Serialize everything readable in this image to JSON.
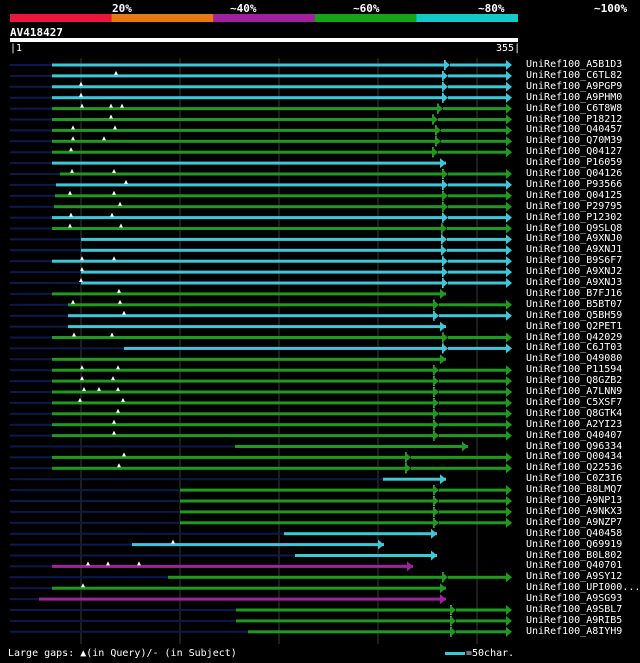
{
  "legend_bar": {
    "labels": [
      "20%",
      "~40%",
      "~60%",
      "~80%",
      "~100%"
    ],
    "colors": [
      "#e8173b",
      "#e87817",
      "#a020a0",
      "#17a317",
      "#17c8c8"
    ]
  },
  "query": {
    "title": "AV418427",
    "start": "1",
    "end": "355"
  },
  "hits": [
    {
      "name": "UniRef100_A5B1D3",
      "color": "cyan"
    },
    {
      "name": "UniRef100_C6TL82",
      "color": "cyan"
    },
    {
      "name": "UniRef100_A9PGP9",
      "color": "cyan"
    },
    {
      "name": "UniRef100_A9PHM0",
      "color": "cyan"
    },
    {
      "name": "UniRef100_C6T8W8",
      "color": "green"
    },
    {
      "name": "UniRef100_P18212",
      "color": "green"
    },
    {
      "name": "UniRef100_Q40457",
      "color": "green"
    },
    {
      "name": "UniRef100_Q70M39",
      "color": "green"
    },
    {
      "name": "UniRef100_Q04127",
      "color": "green"
    },
    {
      "name": "UniRef100_P16059",
      "color": "cyan"
    },
    {
      "name": "UniRef100_Q04126",
      "color": "green"
    },
    {
      "name": "UniRef100_P93566",
      "color": "cyan"
    },
    {
      "name": "UniRef100_Q04125",
      "color": "green"
    },
    {
      "name": "UniRef100_P29795",
      "color": "green"
    },
    {
      "name": "UniRef100_P12302",
      "color": "cyan"
    },
    {
      "name": "UniRef100_Q9SLQ8",
      "color": "green"
    },
    {
      "name": "UniRef100_A9XNJ0",
      "color": "cyan"
    },
    {
      "name": "UniRef100_A9XNJ1",
      "color": "cyan"
    },
    {
      "name": "UniRef100_B9S6F7",
      "color": "cyan"
    },
    {
      "name": "UniRef100_A9XNJ2",
      "color": "cyan"
    },
    {
      "name": "UniRef100_A9XNJ3",
      "color": "cyan"
    },
    {
      "name": "UniRef100_B7FJ16",
      "color": "green"
    },
    {
      "name": "UniRef100_B5BT07",
      "color": "green"
    },
    {
      "name": "UniRef100_Q5BH59",
      "color": "cyan"
    },
    {
      "name": "UniRef100_Q2PET1",
      "color": "cyan"
    },
    {
      "name": "UniRef100_Q42029",
      "color": "green"
    },
    {
      "name": "UniRef100_C6JT03",
      "color": "cyan"
    },
    {
      "name": "UniRef100_Q49080",
      "color": "green"
    },
    {
      "name": "UniRef100_P11594",
      "color": "green"
    },
    {
      "name": "UniRef100_Q8GZB2",
      "color": "green"
    },
    {
      "name": "UniRef100_A7LNN9",
      "color": "green"
    },
    {
      "name": "UniRef100_C5XSF7",
      "color": "green"
    },
    {
      "name": "UniRef100_Q8GTK4",
      "color": "green"
    },
    {
      "name": "UniRef100_A2YI23",
      "color": "green"
    },
    {
      "name": "UniRef100_Q40407",
      "color": "green"
    },
    {
      "name": "UniRef100_Q96334",
      "color": "green"
    },
    {
      "name": "UniRef100_Q00434",
      "color": "green"
    },
    {
      "name": "UniRef100_Q22536",
      "color": "green"
    },
    {
      "name": "UniRef100_C0Z3I6",
      "color": "cyan"
    },
    {
      "name": "UniRef100_B8LMQ7",
      "color": "green"
    },
    {
      "name": "UniRef100_A9NP13",
      "color": "green"
    },
    {
      "name": "UniRef100_A9NKX3",
      "color": "green"
    },
    {
      "name": "UniRef100_A9NZP7",
      "color": "green"
    },
    {
      "name": "UniRef100_Q40458",
      "color": "cyan"
    },
    {
      "name": "UniRef100_Q69919",
      "color": "cyan"
    },
    {
      "name": "UniRef100_B0L802",
      "color": "cyan"
    },
    {
      "name": "UniRef100_Q40701",
      "color": "purple"
    },
    {
      "name": "UniRef100_A9SY12",
      "color": "green"
    },
    {
      "name": "UniRef100_UPI000...",
      "color": "green"
    },
    {
      "name": "UniRef100_A9SG93",
      "color": "purple"
    },
    {
      "name": "UniRef100_A9SBL7",
      "color": "green"
    },
    {
      "name": "UniRef100_A9RIB5",
      "color": "green"
    },
    {
      "name": "UniRef100_A8IYH9",
      "color": "green"
    }
  ],
  "footer": {
    "legend_text": "Large gaps: ▲(in Query)/- (in Subject)",
    "scale_text": "=50char."
  },
  "colors": {
    "cyan": "#3cc8d8",
    "green": "#1f9a1f",
    "purple": "#a020a0",
    "navy": "#0a1a50",
    "grid": "#3a3a3a"
  }
}
